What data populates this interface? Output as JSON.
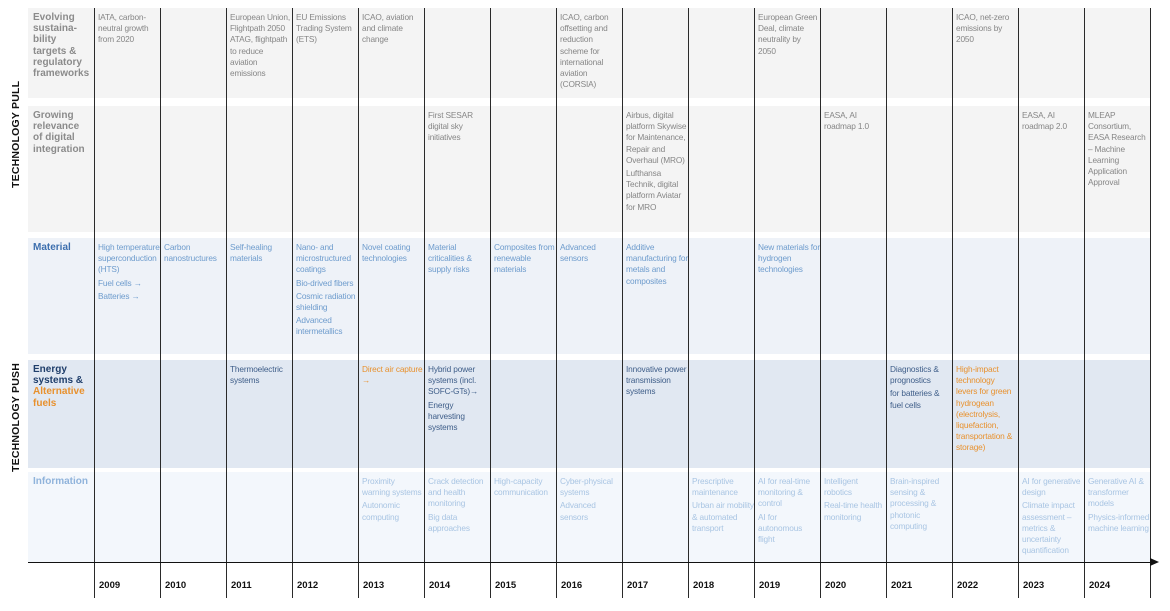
{
  "side_labels": {
    "pull": "TECHNOLOGY PULL",
    "push": "TECHNOLOGY PUSH"
  },
  "colors": {
    "grey_text": "#868686",
    "grey_label": "#8b8b8b",
    "grey_band": "#f4f4f4",
    "blue_text": "#6e9ccd",
    "blue_label": "#3d6fae",
    "blue_band": "#eef2f8",
    "energy_text": "#3f5e89",
    "energy_label": "#1f3e6b",
    "energy_band": "#e1e8f2",
    "orange": "#e8912e",
    "info_text": "#a9c5e3",
    "info_label": "#8fb3db",
    "info_band": "#f3f7fc"
  },
  "years": [
    "2009",
    "2010",
    "2011",
    "2012",
    "2013",
    "2014",
    "2015",
    "2016",
    "2017",
    "2018",
    "2019",
    "2020",
    "2021",
    "2022",
    "2023",
    "2024"
  ],
  "rows": [
    {
      "key": "sustainability",
      "label_lines": [
        "Evolving",
        "sustaina-",
        "bility",
        "targets &",
        "regulatory",
        "frameworks"
      ]
    },
    {
      "key": "digital",
      "label_lines": [
        "Growing",
        "relevance",
        "of digital",
        "integration"
      ]
    },
    {
      "key": "material",
      "label_lines": [
        "Material"
      ]
    },
    {
      "key": "energy",
      "label_lines": [
        "Energy",
        "systems &"
      ],
      "label_alt": "Alternative fuels",
      "label_alt_lines": [
        "Alternative",
        "fuels"
      ]
    },
    {
      "key": "information",
      "label_lines": [
        "Information"
      ]
    }
  ],
  "cells": {
    "sustainability": {
      "2009": [
        {
          "text": "IATA, carbon-neutral growth from 2020"
        }
      ],
      "2011": [
        {
          "text": "European Union, Flightpath 2050 ATAG, flightpath to reduce aviation emissions"
        }
      ],
      "2012": [
        {
          "text": "EU Emissions Trading System (ETS)"
        }
      ],
      "2013": [
        {
          "text": "ICAO, aviation and climate change"
        }
      ],
      "2016": [
        {
          "text": "ICAO, carbon offsetting and reduction scheme for international aviation (CORSIA)"
        }
      ],
      "2019": [
        {
          "text": "European Green Deal, climate neutrality by 2050"
        }
      ],
      "2022": [
        {
          "text": "ICAO, net-zero emissions by 2050"
        }
      ]
    },
    "digital": {
      "2014": [
        {
          "text": "First SESAR digital sky initiatives"
        }
      ],
      "2017": [
        {
          "text": "Airbus, digital platform Skywise for Maintenance, Repair and Overhaul (MRO)"
        },
        {
          "text": "Lufthansa Technik, digital platform Aviatar for MRO"
        }
      ],
      "2020": [
        {
          "text": "EASA, AI roadmap 1.0"
        }
      ],
      "2023": [
        {
          "text": "EASA, AI roadmap 2.0"
        }
      ],
      "2024": [
        {
          "text": "MLEAP Consortium, EASA Research – Machine Learning Application Approval"
        }
      ]
    },
    "material": {
      "2009": [
        {
          "text": "High temperature superconduction (HTS)"
        },
        {
          "text": "Fuel cells →"
        },
        {
          "text": "Batteries →"
        }
      ],
      "2010": [
        {
          "text": "Carbon nanostructures"
        }
      ],
      "2011": [
        {
          "text": "Self-healing materials"
        }
      ],
      "2012": [
        {
          "text": "Nano- and microstructured coatings"
        },
        {
          "text": "Bio-drived fibers"
        },
        {
          "text": "Cosmic radiation shielding"
        },
        {
          "text": "Advanced intermetallics"
        }
      ],
      "2013": [
        {
          "text": "Novel coating technologies"
        }
      ],
      "2014": [
        {
          "text": "Material criticalities & supply risks"
        }
      ],
      "2015": [
        {
          "text": "Composites from renewable materials"
        }
      ],
      "2016": [
        {
          "text": "Advanced sensors"
        }
      ],
      "2017": [
        {
          "text": "Additive manufacturing for metals and composites"
        }
      ],
      "2019": [
        {
          "text": "New materials for hydrogen technologies"
        }
      ]
    },
    "energy": {
      "2011": [
        {
          "text": "Thermoelectric systems"
        }
      ],
      "2013": [
        {
          "text": "Direct air capture →",
          "orange": true
        }
      ],
      "2014": [
        {
          "text": "Hybrid power systems (incl. SOFC-GTs)→"
        },
        {
          "text": "Energy harvesting systems"
        }
      ],
      "2017": [
        {
          "text": "Innovative power transmission systems"
        }
      ],
      "2021": [
        {
          "text": "Diagnostics & prognostics"
        },
        {
          "text": "for batteries & fuel cells"
        }
      ],
      "2022": [
        {
          "text": "High-impact technology levers for green hydrogean (electrolysis, liquefaction, transportation & storage)",
          "orange": true
        }
      ]
    },
    "information": {
      "2013": [
        {
          "text": "Proximity warning systems"
        },
        {
          "text": "Autonomic computing"
        }
      ],
      "2014": [
        {
          "text": "Crack detection and health monitoring"
        },
        {
          "text": "Big data approaches"
        }
      ],
      "2015": [
        {
          "text": "High-capacity communication"
        }
      ],
      "2016": [
        {
          "text": "Cyber-physical systems"
        },
        {
          "text": "Advanced sensors"
        }
      ],
      "2018": [
        {
          "text": "Prescriptive maintenance"
        },
        {
          "text": "Urban air mobility & automated transport"
        }
      ],
      "2019": [
        {
          "text": "AI for real-time monitoring & control"
        },
        {
          "text": "AI for autonomous flight"
        }
      ],
      "2020": [
        {
          "text": "Intelligent robotics"
        },
        {
          "text": "Real-time health monitoring"
        }
      ],
      "2021": [
        {
          "text": "Brain-inspired sensing & processing & photonic computing"
        }
      ],
      "2023": [
        {
          "text": "AI for generative design"
        },
        {
          "text": "Climate impact assessment – metrics & uncertainty quantification"
        }
      ],
      "2024": [
        {
          "text": "Generative AI & transformer models"
        },
        {
          "text": "Physics-informed machine learning"
        }
      ]
    }
  }
}
